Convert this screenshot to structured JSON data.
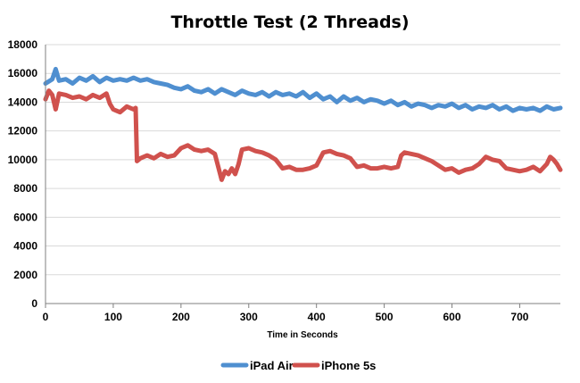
{
  "chart_data": {
    "type": "line",
    "title": "Throttle Test (2 Threads)",
    "xlabel": "Time in Seconds",
    "ylabel": "",
    "xlim": [
      0,
      760
    ],
    "ylim": [
      0,
      18000
    ],
    "x_ticks": [
      "0",
      "100",
      "200",
      "300",
      "400",
      "500",
      "600",
      "700"
    ],
    "y_ticks": [
      "0",
      "2000",
      "4000",
      "6000",
      "8000",
      "10000",
      "12000",
      "14000",
      "16000",
      "18000"
    ],
    "grid": true,
    "legend_position": "bottom",
    "series": [
      {
        "name": "iPad Air",
        "color": "#4f8fd0",
        "points": [
          [
            0,
            15300
          ],
          [
            10,
            15600
          ],
          [
            15,
            16300
          ],
          [
            20,
            15500
          ],
          [
            30,
            15600
          ],
          [
            40,
            15300
          ],
          [
            50,
            15700
          ],
          [
            60,
            15500
          ],
          [
            70,
            15800
          ],
          [
            80,
            15400
          ],
          [
            90,
            15700
          ],
          [
            100,
            15500
          ],
          [
            110,
            15600
          ],
          [
            120,
            15500
          ],
          [
            130,
            15700
          ],
          [
            140,
            15500
          ],
          [
            150,
            15600
          ],
          [
            160,
            15400
          ],
          [
            170,
            15300
          ],
          [
            180,
            15200
          ],
          [
            190,
            15000
          ],
          [
            200,
            14900
          ],
          [
            210,
            15100
          ],
          [
            220,
            14800
          ],
          [
            230,
            14700
          ],
          [
            240,
            14900
          ],
          [
            250,
            14600
          ],
          [
            260,
            14900
          ],
          [
            270,
            14700
          ],
          [
            280,
            14500
          ],
          [
            290,
            14800
          ],
          [
            300,
            14600
          ],
          [
            310,
            14500
          ],
          [
            320,
            14700
          ],
          [
            330,
            14400
          ],
          [
            340,
            14700
          ],
          [
            350,
            14500
          ],
          [
            360,
            14600
          ],
          [
            370,
            14400
          ],
          [
            380,
            14700
          ],
          [
            390,
            14300
          ],
          [
            400,
            14600
          ],
          [
            410,
            14200
          ],
          [
            420,
            14400
          ],
          [
            430,
            14000
          ],
          [
            440,
            14400
          ],
          [
            450,
            14100
          ],
          [
            460,
            14300
          ],
          [
            470,
            14000
          ],
          [
            480,
            14200
          ],
          [
            490,
            14100
          ],
          [
            500,
            13900
          ],
          [
            510,
            14100
          ],
          [
            520,
            13800
          ],
          [
            530,
            14000
          ],
          [
            540,
            13700
          ],
          [
            550,
            13900
          ],
          [
            560,
            13800
          ],
          [
            570,
            13600
          ],
          [
            580,
            13800
          ],
          [
            590,
            13700
          ],
          [
            600,
            13900
          ],
          [
            610,
            13600
          ],
          [
            620,
            13800
          ],
          [
            630,
            13500
          ],
          [
            640,
            13700
          ],
          [
            650,
            13600
          ],
          [
            660,
            13800
          ],
          [
            670,
            13500
          ],
          [
            680,
            13700
          ],
          [
            690,
            13400
          ],
          [
            700,
            13600
          ],
          [
            710,
            13500
          ],
          [
            720,
            13600
          ],
          [
            730,
            13400
          ],
          [
            740,
            13700
          ],
          [
            750,
            13500
          ],
          [
            760,
            13600
          ]
        ]
      },
      {
        "name": "iPhone 5s",
        "color": "#d0514d",
        "points": [
          [
            0,
            14200
          ],
          [
            5,
            14800
          ],
          [
            10,
            14500
          ],
          [
            15,
            13500
          ],
          [
            20,
            14600
          ],
          [
            30,
            14500
          ],
          [
            40,
            14300
          ],
          [
            50,
            14400
          ],
          [
            60,
            14200
          ],
          [
            70,
            14500
          ],
          [
            80,
            14300
          ],
          [
            90,
            14600
          ],
          [
            95,
            13900
          ],
          [
            100,
            13500
          ],
          [
            110,
            13300
          ],
          [
            120,
            13700
          ],
          [
            130,
            13500
          ],
          [
            133,
            13600
          ],
          [
            135,
            9900
          ],
          [
            140,
            10100
          ],
          [
            150,
            10300
          ],
          [
            160,
            10100
          ],
          [
            170,
            10400
          ],
          [
            180,
            10200
          ],
          [
            190,
            10300
          ],
          [
            200,
            10800
          ],
          [
            210,
            11000
          ],
          [
            220,
            10700
          ],
          [
            230,
            10600
          ],
          [
            240,
            10700
          ],
          [
            250,
            10400
          ],
          [
            255,
            9500
          ],
          [
            260,
            8600
          ],
          [
            265,
            9200
          ],
          [
            270,
            9000
          ],
          [
            275,
            9400
          ],
          [
            280,
            9000
          ],
          [
            285,
            9700
          ],
          [
            290,
            10700
          ],
          [
            300,
            10800
          ],
          [
            310,
            10600
          ],
          [
            320,
            10500
          ],
          [
            330,
            10300
          ],
          [
            340,
            10000
          ],
          [
            350,
            9400
          ],
          [
            360,
            9500
          ],
          [
            370,
            9300
          ],
          [
            380,
            9300
          ],
          [
            390,
            9400
          ],
          [
            400,
            9600
          ],
          [
            410,
            10500
          ],
          [
            420,
            10600
          ],
          [
            430,
            10400
          ],
          [
            440,
            10300
          ],
          [
            450,
            10100
          ],
          [
            460,
            9500
          ],
          [
            470,
            9600
          ],
          [
            480,
            9400
          ],
          [
            490,
            9400
          ],
          [
            500,
            9500
          ],
          [
            510,
            9400
          ],
          [
            520,
            9500
          ],
          [
            525,
            10300
          ],
          [
            530,
            10500
          ],
          [
            540,
            10400
          ],
          [
            550,
            10300
          ],
          [
            560,
            10100
          ],
          [
            570,
            9900
          ],
          [
            580,
            9600
          ],
          [
            590,
            9300
          ],
          [
            600,
            9400
          ],
          [
            610,
            9100
          ],
          [
            620,
            9300
          ],
          [
            630,
            9400
          ],
          [
            640,
            9700
          ],
          [
            650,
            10200
          ],
          [
            660,
            10000
          ],
          [
            670,
            9900
          ],
          [
            680,
            9400
          ],
          [
            690,
            9300
          ],
          [
            700,
            9200
          ],
          [
            710,
            9300
          ],
          [
            720,
            9500
          ],
          [
            730,
            9200
          ],
          [
            740,
            9700
          ],
          [
            745,
            10200
          ],
          [
            750,
            10000
          ],
          [
            755,
            9700
          ],
          [
            760,
            9300
          ]
        ]
      }
    ]
  }
}
